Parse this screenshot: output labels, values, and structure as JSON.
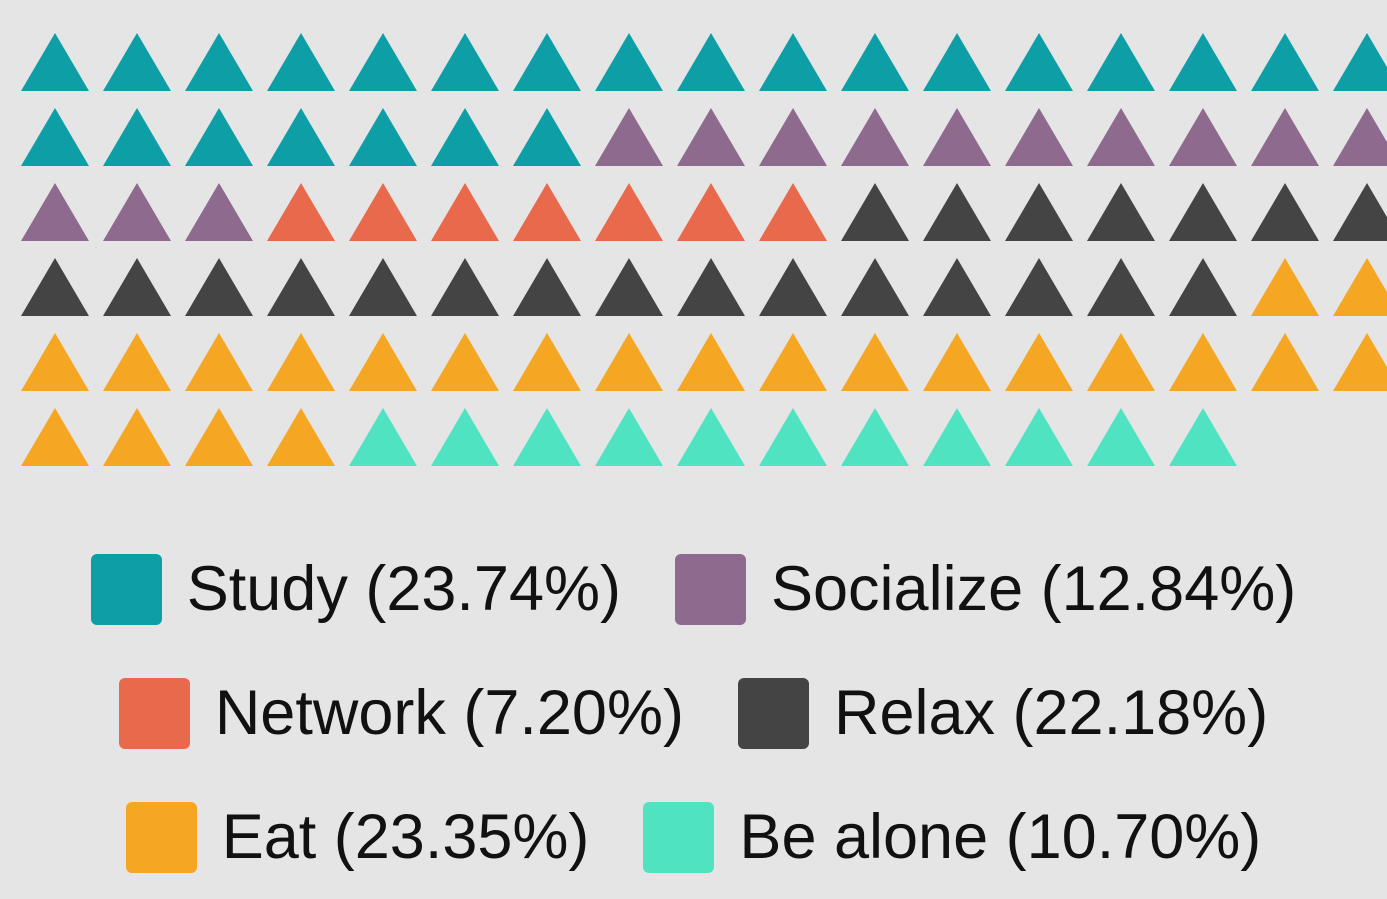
{
  "chart_data": {
    "type": "waffle",
    "categories": [
      "Study (23.74%)",
      "Socialize (12.84%)",
      "Network (7.20%)",
      "Relax (22.18%)",
      "Eat (23.35%)",
      "Be alone (10.70%)"
    ],
    "values": [
      24,
      13,
      7,
      22,
      23,
      11
    ],
    "colors": [
      "#0e9ea6",
      "#8e6a8e",
      "#e8694c",
      "#444444",
      "#f5a623",
      "#50e3c2"
    ]
  }
}
